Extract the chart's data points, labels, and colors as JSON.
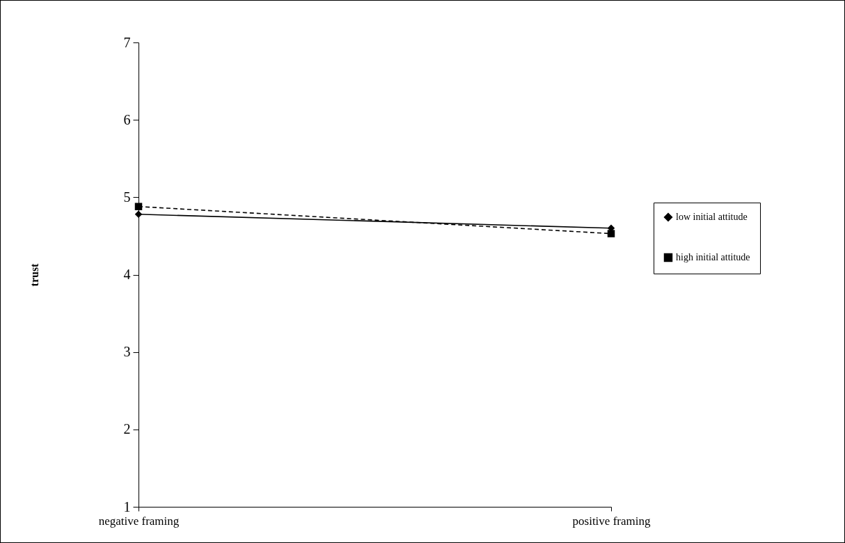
{
  "chart_data": {
    "type": "line",
    "ylabel": "trust",
    "categories": [
      "negative framing",
      "positive framing"
    ],
    "series": [
      {
        "name": "low initial attitude",
        "color": "#000000",
        "values": [
          4.78,
          4.6
        ],
        "marker": "diamond",
        "line_style": "solid"
      },
      {
        "name": "high initial attitude",
        "color": "#000000",
        "values": [
          4.88,
          4.53
        ],
        "marker": "square",
        "line_style": "dashed"
      }
    ],
    "ylim": [
      1,
      7
    ],
    "yticks": [
      1,
      2,
      3,
      4,
      5,
      6,
      7
    ],
    "grid": false,
    "legend": "right"
  }
}
